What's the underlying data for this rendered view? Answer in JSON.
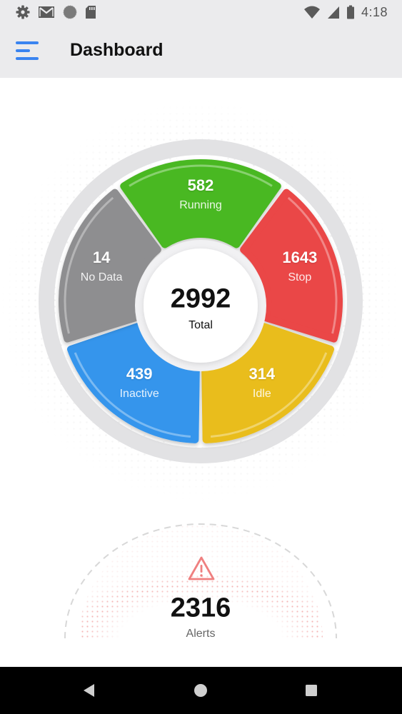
{
  "status_bar": {
    "time": "4:18",
    "left_icons": [
      "gear-icon",
      "gmail-icon",
      "circle-app-icon",
      "sd-card-icon"
    ],
    "right_icons": [
      "wifi-icon",
      "signal-icon",
      "battery-icon"
    ]
  },
  "app_bar": {
    "title": "Dashboard",
    "menu_icon": "hamburger-menu-icon"
  },
  "donut": {
    "total": {
      "value": "2992",
      "label": "Total"
    },
    "segments": [
      {
        "id": "running",
        "value": "582",
        "label": "Running",
        "color": "#4ab823"
      },
      {
        "id": "stop",
        "value": "1643",
        "label": "Stop",
        "color": "#ea4646"
      },
      {
        "id": "idle",
        "value": "314",
        "label": "Idle",
        "color": "#e9bd1b"
      },
      {
        "id": "inactive",
        "value": "439",
        "label": "Inactive",
        "color": "#3595ec"
      },
      {
        "id": "no_data",
        "value": "14",
        "label": "No Data",
        "color": "#8e8e90"
      }
    ]
  },
  "alerts": {
    "value": "2316",
    "label": "Alerts",
    "icon": "warning-triangle-icon",
    "accent_color": "#f08080"
  },
  "nav_bar": {
    "buttons": [
      "back-icon",
      "home-icon",
      "recents-icon"
    ]
  }
}
